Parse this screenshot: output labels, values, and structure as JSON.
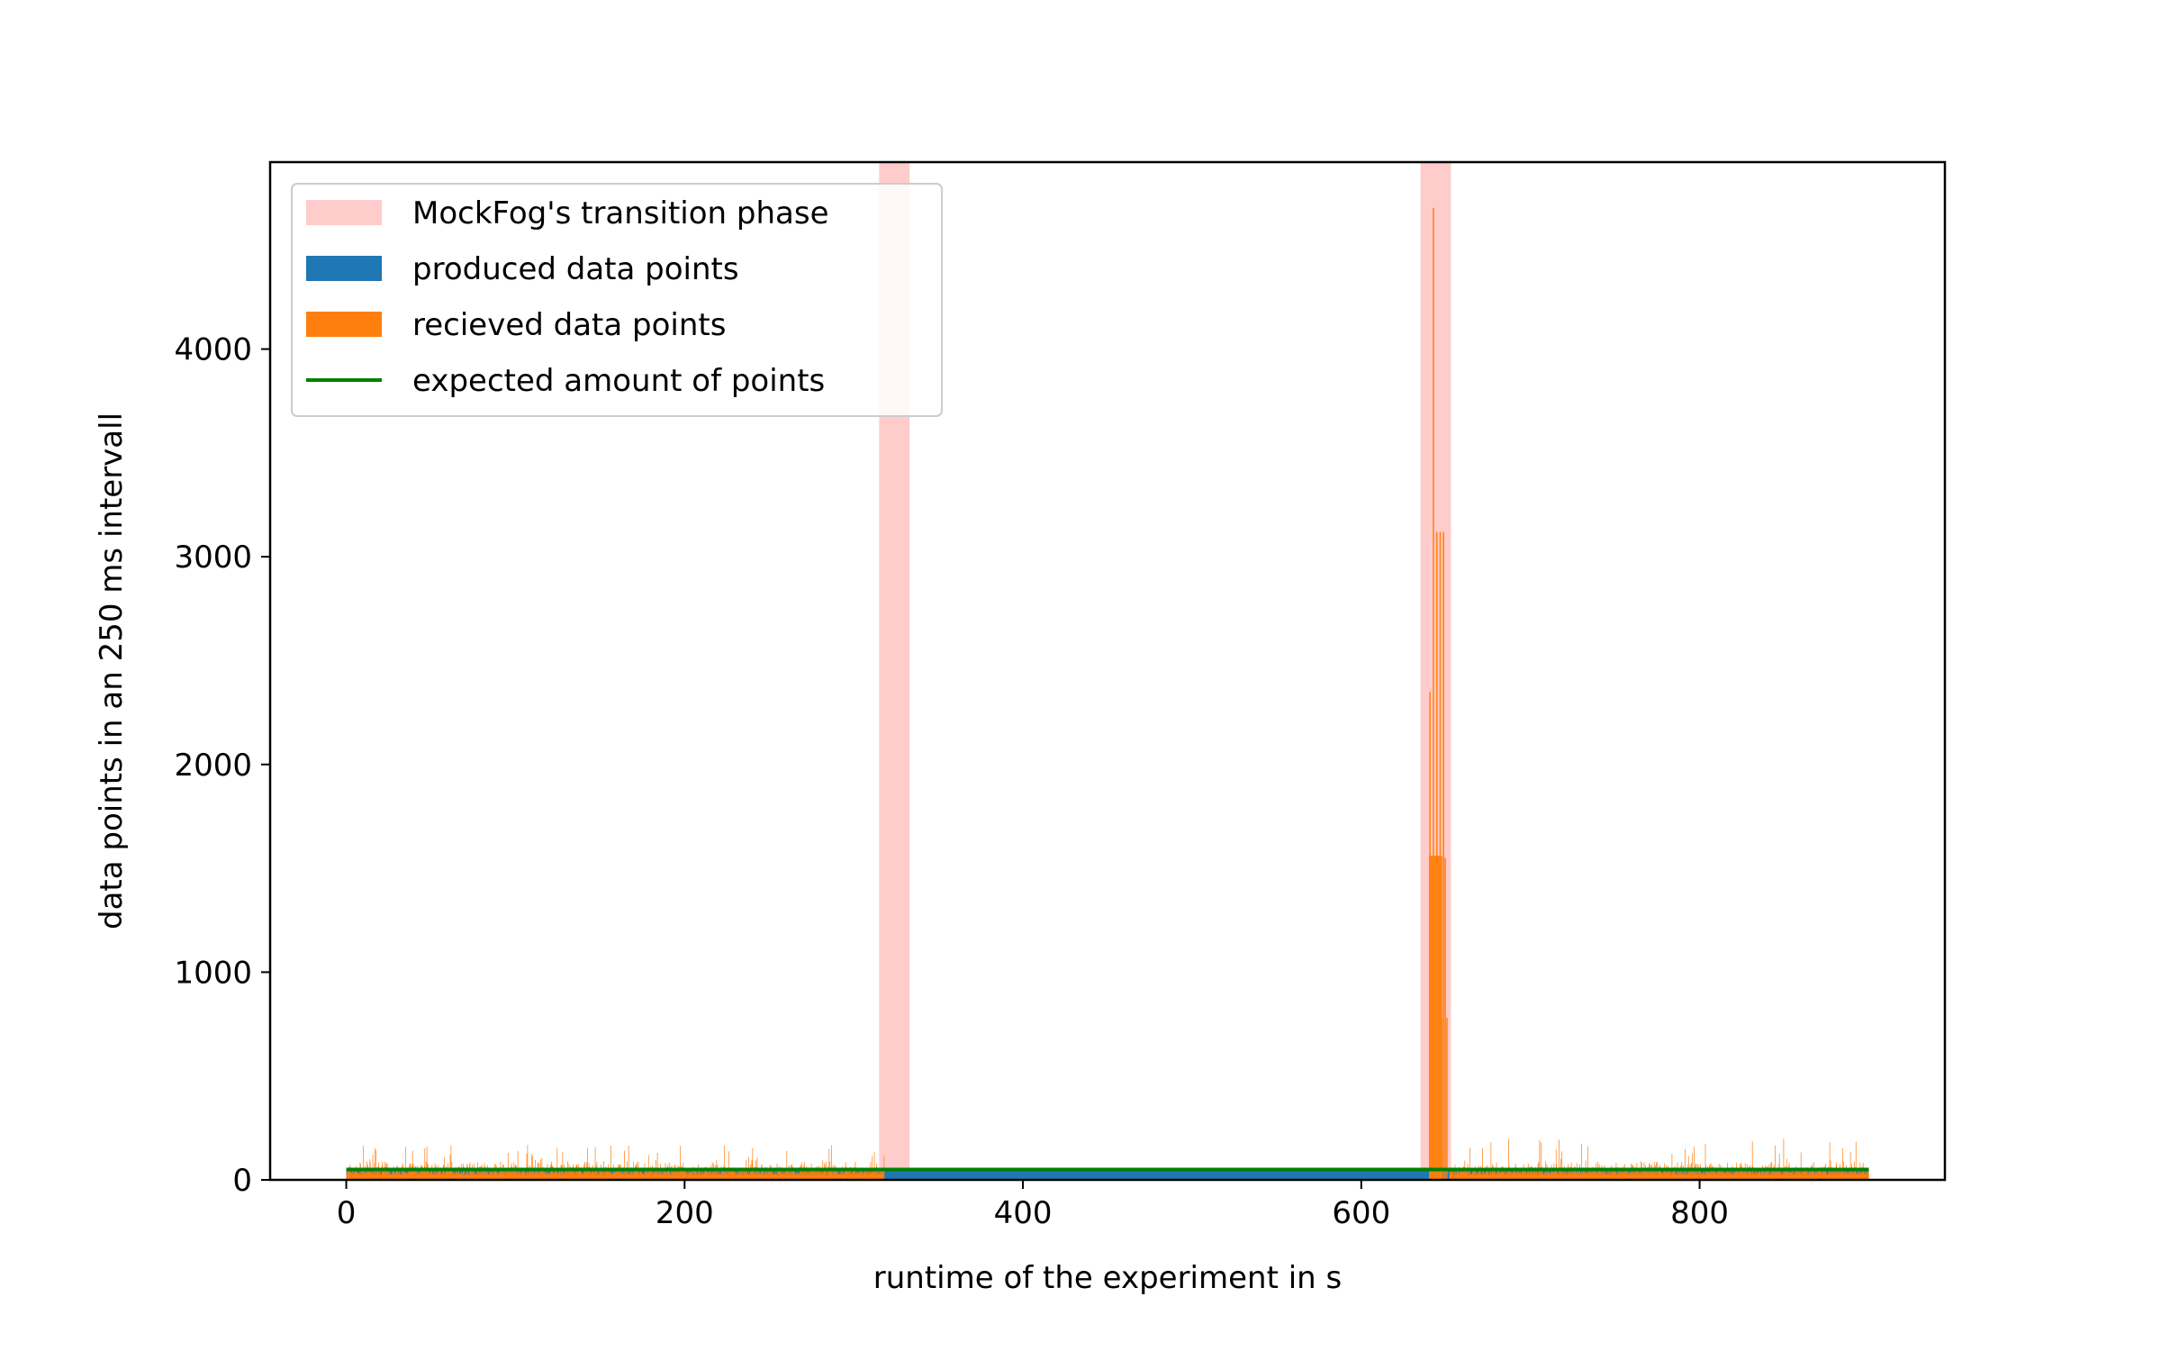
{
  "chart_data": {
    "type": "bar",
    "title": "",
    "xlabel": "runtime of the experiment in s",
    "ylabel": "data points in an 250 ms intervall",
    "xlim": [
      -45,
      945
    ],
    "ylim": [
      0,
      4900
    ],
    "xticks": [
      0,
      200,
      400,
      600,
      800
    ],
    "yticks": [
      0,
      1000,
      2000,
      3000,
      4000
    ],
    "grid": false,
    "legend_position": "top-left",
    "transition_phases": [
      [
        315,
        333
      ],
      [
        635,
        653
      ]
    ],
    "expected_amount": 50,
    "series": [
      {
        "name": "MockFog's transition phase",
        "kind": "span",
        "color": "#ffcccc"
      },
      {
        "name": "produced data points",
        "kind": "bar",
        "color": "#1f77b4"
      },
      {
        "name": "recieved data points",
        "kind": "bar",
        "color": "#ff7f0e"
      },
      {
        "name": "expected amount of points",
        "kind": "line",
        "color": "#008000"
      }
    ],
    "noise_regions": [
      {
        "x_start": 0,
        "x_end": 318,
        "typical_max": 100,
        "peak_max": 170,
        "typical_min": 25
      },
      {
        "x_start": 652,
        "x_end": 900,
        "typical_max": 100,
        "peak_max": 200,
        "typical_min": 25
      }
    ],
    "burst_bars": [
      {
        "x": 640.5,
        "value": 2350
      },
      {
        "x": 641.5,
        "value": 1560
      },
      {
        "x": 642.5,
        "value": 4680
      },
      {
        "x": 643.5,
        "value": 1560
      },
      {
        "x": 644.5,
        "value": 3120
      },
      {
        "x": 645.5,
        "value": 1560
      },
      {
        "x": 646.5,
        "value": 3120
      },
      {
        "x": 647.5,
        "value": 780
      },
      {
        "x": 648.5,
        "value": 3120
      },
      {
        "x": 649.5,
        "value": 1550
      },
      {
        "x": 650.5,
        "value": 780
      }
    ],
    "produced_value": 50,
    "x_range": [
      0,
      900
    ]
  }
}
